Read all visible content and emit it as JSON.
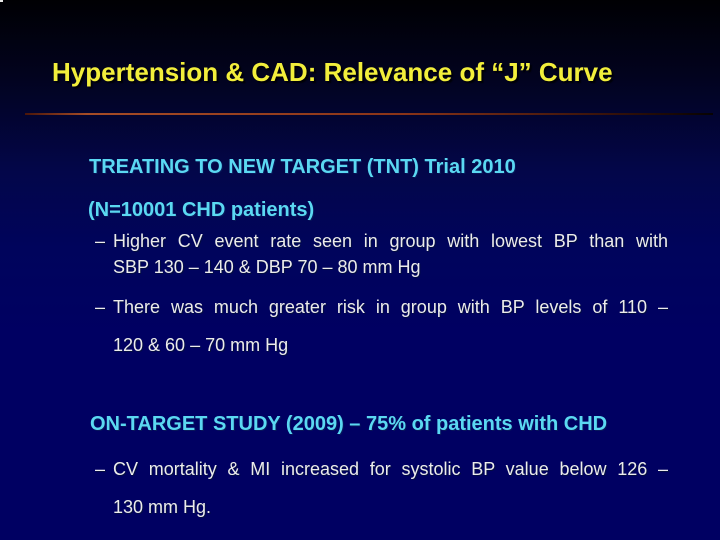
{
  "slide": {
    "title": "Hypertension & CAD: Relevance of “J” Curve",
    "bullet_marker": "–",
    "colors": {
      "bg_top": "#000003",
      "bg_mid": "#00045c",
      "bg_bottom": "#000062",
      "title_color": "#f2ee3b",
      "heading_color": "#5bd8f2",
      "body_color": "#ebebeb",
      "rule_bright": "#a54c26"
    },
    "sections": [
      {
        "heading": "TREATING TO NEW TARGET (TNT) Trial 2010",
        "subheading": "(N=10001 CHD patients)",
        "bullets": [
          {
            "lines": [
              "Higher CV event rate seen in group with lowest BP than with",
              "SBP 130 – 140 & DBP 70 – 80 mm Hg"
            ]
          },
          {
            "lines": [
              "There was much greater risk in group with BP levels of 110 –",
              "120 & 60 – 70 mm Hg"
            ]
          }
        ]
      },
      {
        "heading": "ON-TARGET STUDY (2009) – 75% of patients with CHD",
        "bullets": [
          {
            "lines": [
              "CV mortality & MI increased for systolic BP value below 126 –",
              "130 mm Hg."
            ]
          }
        ]
      }
    ]
  }
}
